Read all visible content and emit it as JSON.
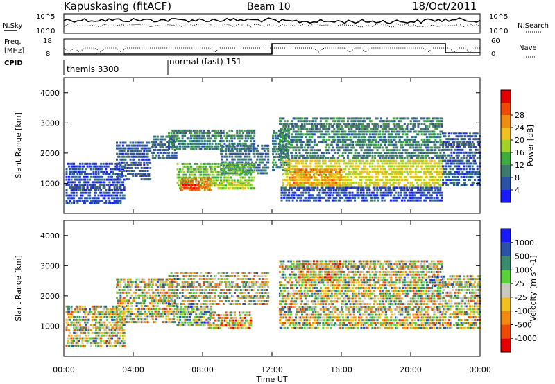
{
  "header": {
    "site": "Kapuskasing (fitACF)",
    "beam": "Beam 10",
    "date": "18/Oct/2011"
  },
  "sky_panel": {
    "left_label": "N.Sky",
    "right_label": "N.Search",
    "ticks_left": [
      "10^5",
      "10^0"
    ],
    "ticks_right": [
      "10^5",
      "10^0"
    ]
  },
  "freq_panel": {
    "left_label_1": "Freq.",
    "left_label_2": "[MHz]",
    "right_label": "Nave",
    "ticks_left": [
      "18",
      "8"
    ],
    "ticks_right": [
      "60",
      "0"
    ]
  },
  "cpid": {
    "label": "CPID",
    "modes": [
      {
        "name": "themis 3300",
        "start_hour": 0,
        "end_hour": 6
      },
      {
        "name": "normal (fast) 151",
        "start_hour": 6,
        "end_hour": 24
      }
    ]
  },
  "colors": {
    "power": [
      "#1a1aff",
      "#2c52a8",
      "#3e7a6e",
      "#3caa3c",
      "#a0d02a",
      "#f0c020",
      "#f08a10",
      "#f04a08",
      "#e60000"
    ],
    "velocity": [
      "#e60000",
      "#f04a08",
      "#f08a10",
      "#f0c020",
      "#c8c8c0",
      "#5ad13a",
      "#3a8a6e",
      "#2c52a8",
      "#1a1aff"
    ]
  },
  "chart_data": [
    {
      "type": "heatmap",
      "panel": "power",
      "ylabel": "Slant Range [km]",
      "yticks": [
        "1000",
        "2000",
        "3000",
        "4000"
      ],
      "ylim": [
        0,
        4500
      ],
      "xlim": [
        0,
        24
      ],
      "colorbar": {
        "label": "Power [dB]",
        "ticks": [
          "4",
          "8",
          "12",
          "16",
          "20",
          "24",
          "28"
        ],
        "range": [
          0,
          32
        ]
      },
      "regions": [
        {
          "t0": 0.1,
          "t1": 3.5,
          "r0": 300,
          "r1": 1700,
          "v": 5
        },
        {
          "t0": 3.0,
          "t1": 5.0,
          "r0": 1100,
          "r1": 2400,
          "v": 6
        },
        {
          "t0": 5.0,
          "t1": 6.5,
          "r0": 1800,
          "r1": 2600,
          "v": 7
        },
        {
          "t0": 6.0,
          "t1": 11.0,
          "r0": 2100,
          "r1": 2800,
          "v": 9
        },
        {
          "t0": 9.0,
          "t1": 11.8,
          "r0": 1300,
          "r1": 2300,
          "v": 8
        },
        {
          "t0": 6.5,
          "t1": 11.0,
          "r0": 800,
          "r1": 1700,
          "v": 14
        },
        {
          "t0": 6.7,
          "t1": 8.5,
          "r0": 750,
          "r1": 1200,
          "v": 24
        },
        {
          "t0": 6.8,
          "t1": 7.8,
          "r0": 800,
          "r1": 1000,
          "v": 28
        },
        {
          "t0": 8.5,
          "t1": 10.6,
          "r0": 800,
          "r1": 1100,
          "v": 17
        },
        {
          "t0": 12.0,
          "t1": 13.0,
          "r0": 1400,
          "r1": 2800,
          "v": 9
        },
        {
          "t0": 12.4,
          "t1": 21.8,
          "r0": 1800,
          "r1": 3200,
          "v": 9
        },
        {
          "t0": 12.6,
          "t1": 21.8,
          "r0": 900,
          "r1": 1800,
          "v": 18
        },
        {
          "t0": 13.0,
          "t1": 16.0,
          "r0": 900,
          "r1": 1500,
          "v": 23
        },
        {
          "t0": 12.5,
          "t1": 21.8,
          "r0": 400,
          "r1": 900,
          "v": 5
        },
        {
          "t0": 21.8,
          "t1": 24.0,
          "r0": 900,
          "r1": 2700,
          "v": 6
        }
      ]
    },
    {
      "type": "heatmap",
      "panel": "velocity",
      "xlabel": "Time UT",
      "ylabel": "Slant Range [km]",
      "xticks": [
        "00:00",
        "04:00",
        "08:00",
        "12:00",
        "16:00",
        "20:00",
        "00:00"
      ],
      "yticks": [
        "1000",
        "2000",
        "3000",
        "4000"
      ],
      "ylim": [
        0,
        4500
      ],
      "xlim": [
        0,
        24
      ],
      "colorbar": {
        "label": "Velocity [m s^-1]",
        "ticks": [
          "1000",
          "500",
          "100",
          "25",
          "-25",
          "-100",
          "-500",
          "-1000"
        ]
      },
      "regions": [
        {
          "t0": 0.1,
          "t1": 3.5,
          "r0": 300,
          "r1": 1700,
          "v": 4
        },
        {
          "t0": 3.0,
          "t1": 6.5,
          "r0": 1100,
          "r1": 2600,
          "v": 4
        },
        {
          "t0": 6.0,
          "t1": 11.8,
          "r0": 1700,
          "r1": 2800,
          "v": 4
        },
        {
          "t0": 6.5,
          "t1": 8.5,
          "r0": 1000,
          "r1": 1700,
          "v": 5
        },
        {
          "t0": 8.3,
          "t1": 10.8,
          "r0": 900,
          "r1": 1500,
          "v": 3
        },
        {
          "t0": 12.4,
          "t1": 21.8,
          "r0": 900,
          "r1": 3200,
          "v": 4
        },
        {
          "t0": 13.5,
          "t1": 16.0,
          "r0": 2500,
          "r1": 3200,
          "v": 3
        },
        {
          "t0": 21.0,
          "t1": 22.0,
          "r0": 2300,
          "r1": 2700,
          "v": 5
        },
        {
          "t0": 21.8,
          "t1": 24.0,
          "r0": 900,
          "r1": 2700,
          "v": 4
        }
      ]
    }
  ]
}
